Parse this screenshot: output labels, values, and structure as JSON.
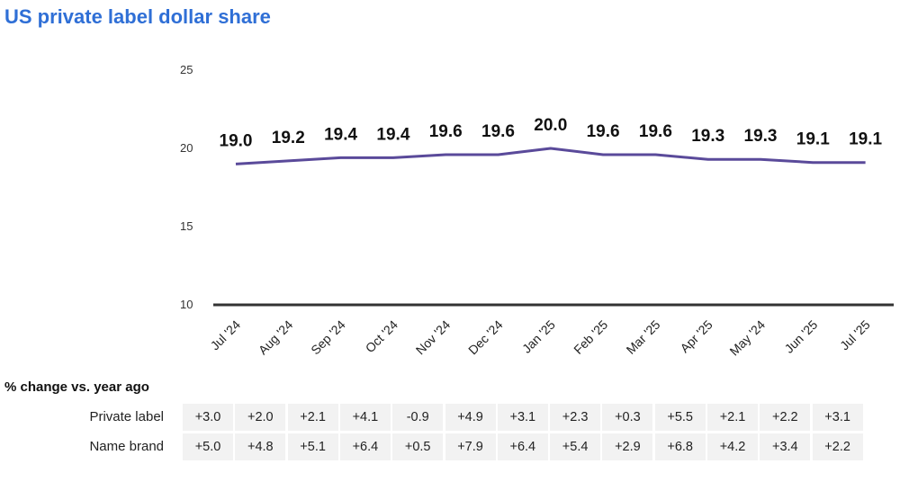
{
  "page": {
    "title": "US private label dollar share"
  },
  "chart_data": {
    "type": "line",
    "title": "US private label dollar share",
    "xlabel": "",
    "ylabel": "",
    "categories": [
      "Jul '24",
      "Aug '24",
      "Sep '24",
      "Oct '24",
      "Nov '24",
      "Dec '24",
      "Jan '25",
      "Feb '25",
      "Mar '25",
      "Apr '25",
      "May '24",
      "Jun '25",
      "Jul '25"
    ],
    "series": [
      {
        "values": [
          19.0,
          19.2,
          19.4,
          19.4,
          19.6,
          19.6,
          20.0,
          19.6,
          19.6,
          19.3,
          19.3,
          19.1,
          19.1
        ]
      }
    ],
    "data_labels": [
      "19.0",
      "19.2",
      "19.4",
      "19.4",
      "19.6",
      "19.6",
      "20.0",
      "19.6",
      "19.6",
      "19.3",
      "19.3",
      "19.1",
      "19.1"
    ],
    "ylim": [
      10,
      25
    ],
    "yticks": [
      "10",
      "15",
      "20",
      "25"
    ],
    "grid": false,
    "line_color": "#5a4a9a"
  },
  "table": {
    "header": "% change vs. year ago",
    "rows": [
      {
        "label": "Private label",
        "values": [
          "+3.0",
          "+2.0",
          "+2.1",
          "+4.1",
          "-0.9",
          "+4.9",
          "+3.1",
          "+2.3",
          "+0.3",
          "+5.5",
          "+2.1",
          "+2.2",
          "+3.1"
        ]
      },
      {
        "label": "Name brand",
        "values": [
          "+5.0",
          "+4.8",
          "+5.1",
          "+6.4",
          "+0.5",
          "+7.9",
          "+6.4",
          "+5.4",
          "+2.9",
          "+6.8",
          "+4.2",
          "+3.4",
          "+2.2"
        ]
      }
    ]
  }
}
